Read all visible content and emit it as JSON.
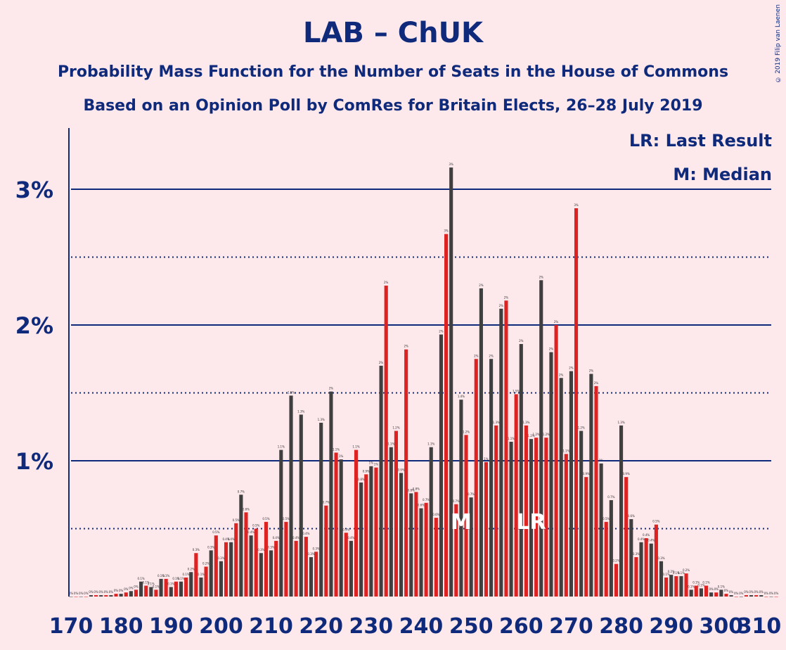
{
  "title": "LAB – ChUK",
  "subtitle1": "Probability Mass Function for the Number of Seats in the House of Commons",
  "subtitle2": "Based on an Opinion Poll by ComRes for Britain Elects, 26–28 July 2019",
  "copyright": "© 2019 Filip van Laenen",
  "legend": {
    "lr": "LR: Last Result",
    "m": "M: Median"
  },
  "colors": {
    "background": "#fde8ec",
    "text": "#0f2a7a",
    "bar_even": "#3f3f3f",
    "bar_odd": "#dd2222",
    "grid": "#0f2a7a"
  },
  "chart_data": {
    "type": "bar",
    "x_start": 170,
    "x_end": 310,
    "x_ticks": [
      "170",
      "180",
      "190",
      "200",
      "210",
      "220",
      "230",
      "240",
      "250",
      "260",
      "270",
      "280",
      "290",
      "300",
      "310"
    ],
    "y_ticks": [
      {
        "value": 1,
        "label": "1%"
      },
      {
        "value": 2,
        "label": "2%"
      },
      {
        "value": 3,
        "label": "3%"
      }
    ],
    "y_grid_dotted": [
      0.5,
      1.5,
      2.5
    ],
    "ylim": [
      0,
      3.3
    ],
    "unit": "%",
    "markers": [
      {
        "label": "M",
        "x": 248
      },
      {
        "label": "LR",
        "x": 262
      }
    ],
    "values": [
      0.0,
      0.0,
      0.0,
      0.0,
      0.01,
      0.01,
      0.01,
      0.01,
      0.01,
      0.02,
      0.02,
      0.03,
      0.04,
      0.05,
      0.11,
      0.08,
      0.07,
      0.05,
      0.13,
      0.13,
      0.07,
      0.11,
      0.11,
      0.14,
      0.18,
      0.32,
      0.14,
      0.22,
      0.34,
      0.45,
      0.26,
      0.4,
      0.4,
      0.54,
      0.75,
      0.62,
      0.45,
      0.5,
      0.32,
      0.55,
      0.34,
      0.41,
      1.08,
      0.55,
      1.48,
      0.41,
      1.34,
      0.44,
      0.29,
      0.33,
      1.28,
      0.67,
      1.51,
      1.06,
      1.01,
      0.47,
      0.41,
      1.08,
      0.84,
      0.9,
      0.96,
      0.95,
      1.7,
      2.29,
      1.1,
      1.22,
      0.91,
      1.82,
      0.76,
      0.77,
      0.65,
      0.69,
      1.1,
      0.58,
      1.93,
      2.67,
      3.16,
      0.68,
      1.45,
      1.19,
      0.73,
      1.75,
      2.27,
      0.99,
      1.75,
      1.26,
      2.12,
      2.18,
      1.14,
      1.49,
      1.86,
      1.26,
      1.16,
      1.17,
      2.33,
      1.17,
      1.8,
      2.0,
      1.61,
      1.05,
      1.66,
      2.86,
      1.22,
      0.88,
      1.64,
      1.55,
      0.98,
      0.55,
      0.71,
      0.24,
      1.26,
      0.88,
      0.57,
      0.29,
      0.4,
      0.43,
      0.39,
      0.53,
      0.26,
      0.14,
      0.16,
      0.15,
      0.15,
      0.17,
      0.05,
      0.08,
      0.06,
      0.08,
      0.03,
      0.03,
      0.05,
      0.02,
      0.01,
      0.0,
      0.0,
      0.01,
      0.01,
      0.01,
      0.01,
      0.0,
      0.0,
      0.0
    ],
    "value_labels": [
      "0%",
      "0%",
      "0%",
      "0%",
      "0%",
      "0%",
      "0%",
      "0%",
      "0%",
      "0%",
      "0%",
      "0%",
      "0%",
      "0%",
      "0.1%",
      "0.1%",
      "0.1%",
      "0.1%",
      "0.1%",
      "0.1%",
      "0.1%",
      "0.1%",
      "0.1%",
      "0.1%",
      "0.2%",
      "0.3%",
      "0.1%",
      "0.2%",
      "0.3%",
      "0.5%",
      "0.3%",
      "0.4%",
      "0.4%",
      "0.5%",
      "0.7%",
      "0.6%",
      "0.4%",
      "0.5%",
      "0.3%",
      "0.5%",
      "0.3%",
      "0.4%",
      "1.1%",
      "0.5%",
      "1.5%",
      "0.4%",
      "1.3%",
      "0.4%",
      "0.3%",
      "0.3%",
      "1.3%",
      "0.7%",
      "2%",
      "1.1%",
      "1%",
      "0.5%",
      "0.4%",
      "1.1%",
      "0.8%",
      "0.9%",
      "1%",
      "1%",
      "2%",
      "2%",
      "1.1%",
      "1.2%",
      "0.9%",
      "2%",
      "0.8%",
      "0.8%",
      "0.6%",
      "0.7%",
      "1.1%",
      "0.6%",
      "2%",
      "3%",
      "3%",
      "0.7%",
      "1.4%",
      "1.2%",
      "0.7%",
      "2%",
      "2%",
      "1%",
      "2%",
      "1.3%",
      "2%",
      "2%",
      "1.1%",
      "1.5%",
      "2%",
      "1.3%",
      "1.2%",
      "1.2%",
      "2%",
      "1.2%",
      "2%",
      "2%",
      "2%",
      "1.1%",
      "2%",
      "3%",
      "1.2%",
      "0.9%",
      "2%",
      "2%",
      "1%",
      "0.5%",
      "0.7%",
      "0.2%",
      "1.3%",
      "0.9%",
      "0.6%",
      "0.3%",
      "0.4%",
      "0.4%",
      "0.4%",
      "0.5%",
      "0.3%",
      "0.1%",
      "0.2%",
      "0.1%",
      "0.1%",
      "0.2%",
      "0.1%",
      "0.1%",
      "0.1%",
      "0.1%",
      "0%",
      "0%",
      "0.1%",
      "0%",
      "0%",
      "0%",
      "0%",
      "0%",
      "0%",
      "0%",
      "0%",
      "0%",
      "0%",
      "0%"
    ]
  }
}
